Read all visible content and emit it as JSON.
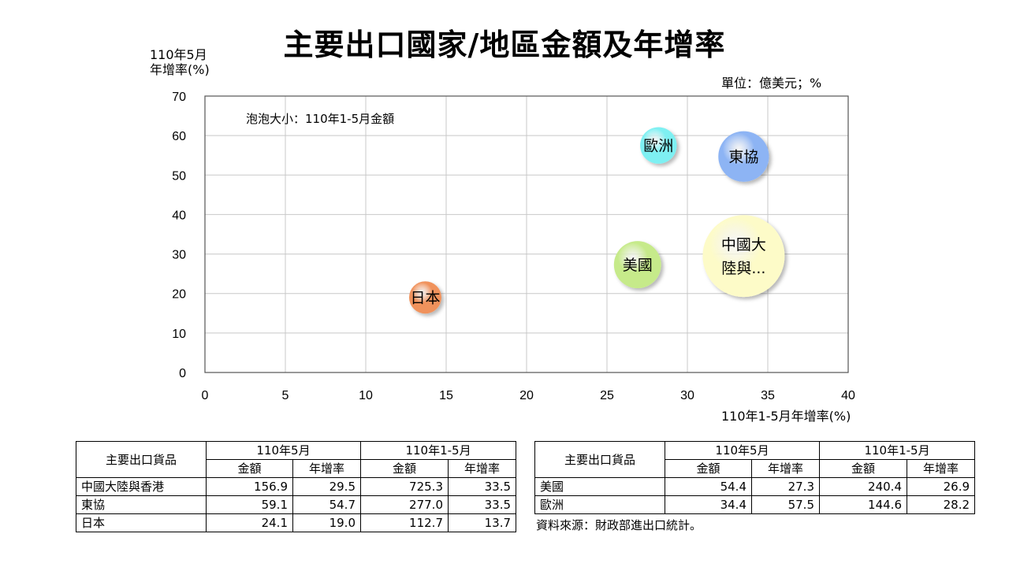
{
  "title": "主要出口國家/地區金額及年增率",
  "y_axis_label_line1": "110年5月",
  "y_axis_label_line2": "年增率(%)",
  "unit": "單位：億美元；%",
  "x_axis_label": "110年1-5月年增率(%)",
  "note": "泡泡大小：110年1-5月金額",
  "chart_data": {
    "type": "scatter",
    "title": "主要出口國家/地區金額及年增率",
    "xlabel": "110年1-5月年增率(%)",
    "ylabel": "110年5月 年增率(%)",
    "xlim": [
      0,
      40
    ],
    "ylim": [
      0,
      70
    ],
    "xticks": [
      0,
      5,
      10,
      15,
      20,
      25,
      30,
      35,
      40
    ],
    "yticks": [
      0,
      10,
      20,
      30,
      40,
      50,
      60,
      70
    ],
    "grid": true,
    "points": [
      {
        "label": "中國大陸與...",
        "label_lines": [
          "中國大",
          "陸與..."
        ],
        "x": 33.5,
        "y": 29.5,
        "size": 725.3,
        "color": "#fdfbc8"
      },
      {
        "label": "東協",
        "label_lines": [
          "東協"
        ],
        "x": 33.5,
        "y": 54.7,
        "size": 277.0,
        "color": "#8db4f4"
      },
      {
        "label": "美國",
        "label_lines": [
          "美國"
        ],
        "x": 26.9,
        "y": 27.3,
        "size": 240.4,
        "color": "#c6ea8a"
      },
      {
        "label": "歐洲",
        "label_lines": [
          "歐洲"
        ],
        "x": 28.2,
        "y": 57.5,
        "size": 144.6,
        "color": "#7ef0f2"
      },
      {
        "label": "日本",
        "label_lines": [
          "日本"
        ],
        "x": 13.7,
        "y": 19.0,
        "size": 112.7,
        "color": "#f0925c"
      }
    ]
  },
  "tables": {
    "header_goods": "主要出口貨品",
    "period_may": "110年5月",
    "period_jan_may": "110年1-5月",
    "col_amount": "金額",
    "col_growth": "年增率",
    "left_rows": [
      {
        "name": "中國大陸與香港",
        "may_amount": "156.9",
        "may_growth": "29.5",
        "ytd_amount": "725.3",
        "ytd_growth": "33.5"
      },
      {
        "name": "東協",
        "may_amount": "59.1",
        "may_growth": "54.7",
        "ytd_amount": "277.0",
        "ytd_growth": "33.5"
      },
      {
        "name": "日本",
        "may_amount": "24.1",
        "may_growth": "19.0",
        "ytd_amount": "112.7",
        "ytd_growth": "13.7"
      }
    ],
    "right_rows": [
      {
        "name": "美國",
        "may_amount": "54.4",
        "may_growth": "27.3",
        "ytd_amount": "240.4",
        "ytd_growth": "26.9"
      },
      {
        "name": "歐洲",
        "may_amount": "34.4",
        "may_growth": "57.5",
        "ytd_amount": "144.6",
        "ytd_growth": "28.2"
      }
    ]
  },
  "source": "資料來源：財政部進出口統計。"
}
